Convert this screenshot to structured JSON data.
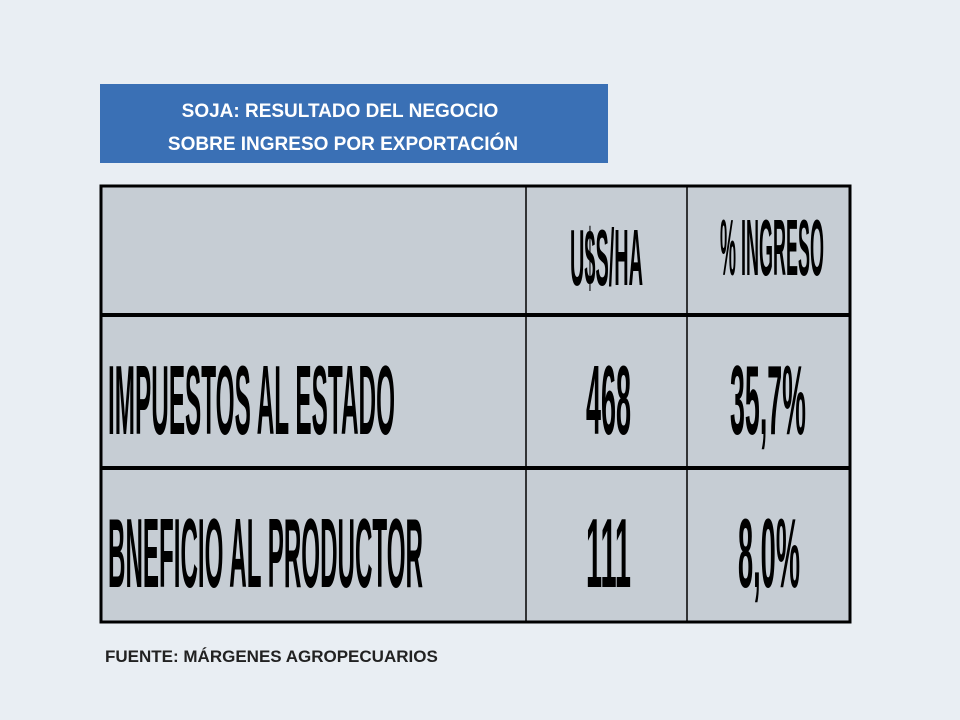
{
  "header": {
    "title_lines": [
      "SOJA: RESULTADO DEL NEGOCIO",
      "SOBRE INGRESO POR EXPORTACIÓN"
    ]
  },
  "table": {
    "columns": [
      "U$S/HA",
      "% INGRESO"
    ],
    "rows": [
      [
        "IMPUESTOS AL ESTADO",
        "468",
        "35,7%"
      ],
      [
        "BNEFICIO AL PRODUCTOR",
        "111",
        "8,0%"
      ]
    ]
  },
  "footer": {
    "source": "FUENTE: MÁRGENES AGROPECUARIOS"
  }
}
